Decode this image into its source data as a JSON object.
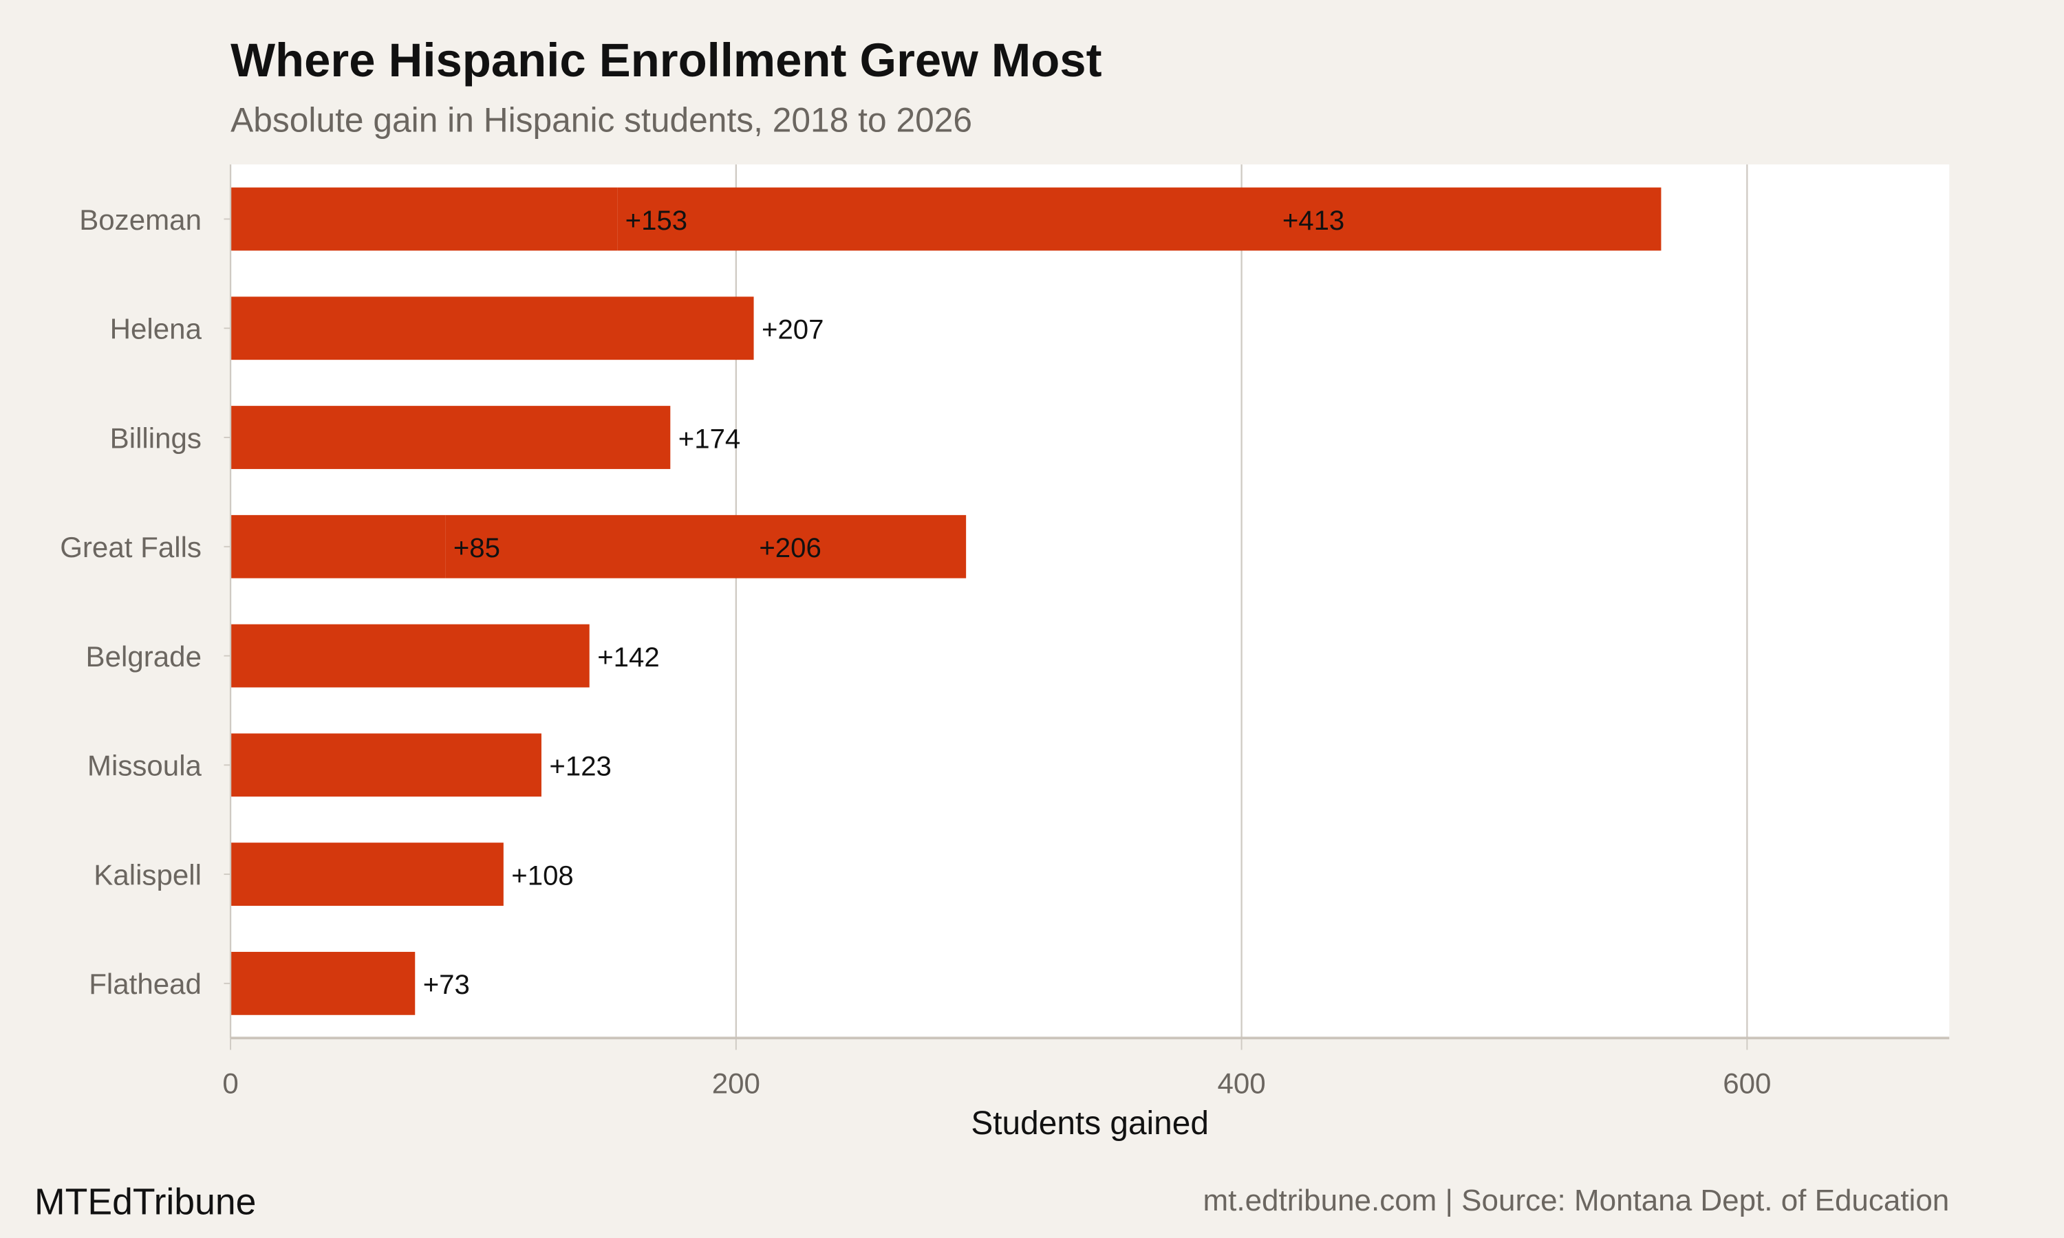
{
  "chart_data": {
    "type": "bar",
    "orientation": "horizontal",
    "stacked": true,
    "title": "Where Hispanic Enrollment Grew Most",
    "subtitle": "Absolute gain in Hispanic students, 2018 to 2026",
    "xlabel": "Students gained",
    "ylabel": "",
    "xlim": [
      0,
      680
    ],
    "xticks": [
      0,
      200,
      400,
      600
    ],
    "grid": "vertical",
    "bar_color": "#d4380d",
    "categories": [
      "Bozeman",
      "Helena",
      "Billings",
      "Great Falls",
      "Belgrade",
      "Missoula",
      "Kalispell",
      "Flathead"
    ],
    "segments": [
      [
        153,
        413
      ],
      [
        207
      ],
      [
        174
      ],
      [
        85,
        206
      ],
      [
        142
      ],
      [
        123
      ],
      [
        108
      ],
      [
        73
      ]
    ],
    "labels": [
      [
        "+153",
        "+413"
      ],
      [
        "+207"
      ],
      [
        "+174"
      ],
      [
        "+85",
        "+206"
      ],
      [
        "+142"
      ],
      [
        "+123"
      ],
      [
        "+108"
      ],
      [
        "+73"
      ]
    ]
  },
  "footer": {
    "brand": "MTEdTribune",
    "source": "mt.edtribune.com | Source: Montana Dept. of Education"
  }
}
